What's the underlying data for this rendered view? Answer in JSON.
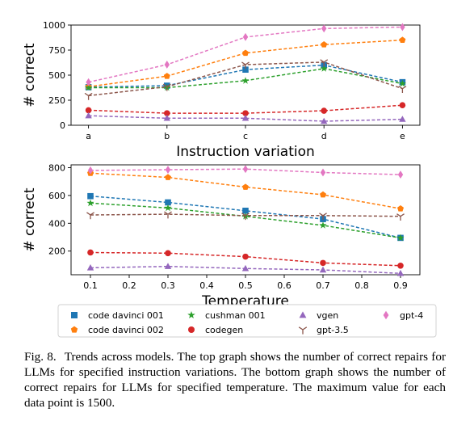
{
  "chart_data": [
    {
      "type": "line",
      "xlabel": "Instruction variation",
      "ylabel": "# correct",
      "categories": [
        "a",
        "b",
        "c",
        "d",
        "e"
      ],
      "ylim": [
        0,
        1000
      ],
      "yticks": [
        0,
        250,
        500,
        750,
        1000
      ],
      "grid": false,
      "series": [
        {
          "name": "code davinci 001",
          "key": "cd001",
          "values": [
            380,
            395,
            555,
            600,
            430
          ]
        },
        {
          "name": "code davinci 002",
          "key": "cd002",
          "values": [
            385,
            490,
            720,
            805,
            850
          ]
        },
        {
          "name": "cushman 001",
          "key": "cushman",
          "values": [
            375,
            375,
            445,
            565,
            415
          ]
        },
        {
          "name": "codegen",
          "key": "codegen",
          "values": [
            150,
            120,
            120,
            145,
            200
          ]
        },
        {
          "name": "vgen",
          "key": "vgen",
          "values": [
            95,
            70,
            70,
            40,
            60
          ]
        },
        {
          "name": "gpt-3.5",
          "key": "gpt35",
          "values": [
            295,
            385,
            605,
            630,
            365
          ]
        },
        {
          "name": "gpt-4",
          "key": "gpt4",
          "values": [
            430,
            605,
            880,
            965,
            980
          ]
        }
      ]
    },
    {
      "type": "line",
      "xlabel": "Temperature",
      "ylabel": "# correct",
      "x": [
        0.1,
        0.3,
        0.5,
        0.7,
        0.9
      ],
      "xlim": [
        0.05,
        0.95
      ],
      "xticks": [
        "0.1",
        "0.2",
        "0.3",
        "0.4",
        "0.5",
        "0.6",
        "0.7",
        "0.8",
        "0.9"
      ],
      "ylim": [
        30,
        820
      ],
      "yticks": [
        200,
        400,
        600,
        800
      ],
      "grid": false,
      "series": [
        {
          "name": "code davinci 001",
          "key": "cd001",
          "values": [
            595,
            550,
            490,
            430,
            295
          ]
        },
        {
          "name": "code davinci 002",
          "key": "cd002",
          "values": [
            760,
            730,
            660,
            605,
            505
          ]
        },
        {
          "name": "cushman 001",
          "key": "cushman",
          "values": [
            545,
            510,
            450,
            385,
            295
          ]
        },
        {
          "name": "codegen",
          "key": "codegen",
          "values": [
            190,
            185,
            160,
            115,
            95
          ]
        },
        {
          "name": "vgen",
          "key": "vgen",
          "values": [
            80,
            90,
            75,
            65,
            40
          ]
        },
        {
          "name": "gpt-3.5",
          "key": "gpt35",
          "values": [
            460,
            465,
            455,
            455,
            450
          ]
        },
        {
          "name": "gpt-4",
          "key": "gpt4",
          "values": [
            780,
            785,
            790,
            765,
            750
          ]
        }
      ]
    }
  ],
  "legend": {
    "placement": "bottom",
    "entries": [
      {
        "key": "cd001",
        "label": "code davinci 001"
      },
      {
        "key": "cushman",
        "label": "cushman 001"
      },
      {
        "key": "vgen",
        "label": "vgen"
      },
      {
        "key": "gpt4",
        "label": "gpt-4"
      },
      {
        "key": "cd002",
        "label": "code davinci 002"
      },
      {
        "key": "codegen",
        "label": "codegen"
      },
      {
        "key": "gpt35",
        "label": "gpt-3.5"
      }
    ]
  },
  "series_styles": {
    "cd001": {
      "color": "#1f77b4",
      "marker": "square"
    },
    "cd002": {
      "color": "#ff7f0e",
      "marker": "pentagon"
    },
    "cushman": {
      "color": "#2ca02c",
      "marker": "star"
    },
    "codegen": {
      "color": "#d62728",
      "marker": "circle"
    },
    "vgen": {
      "color": "#9467bd",
      "marker": "triangle"
    },
    "gpt35": {
      "color": "#8c564b",
      "marker": "tri"
    },
    "gpt4": {
      "color": "#e377c2",
      "marker": "diamond"
    }
  },
  "caption": {
    "label": "Fig. 8.",
    "text": "Trends across models. The top graph shows the number of correct repairs for LLMs for specified instruction variations. The bottom graph shows the number of correct repairs for LLMs for specified temperature. The maximum value for each data point is 1500."
  }
}
